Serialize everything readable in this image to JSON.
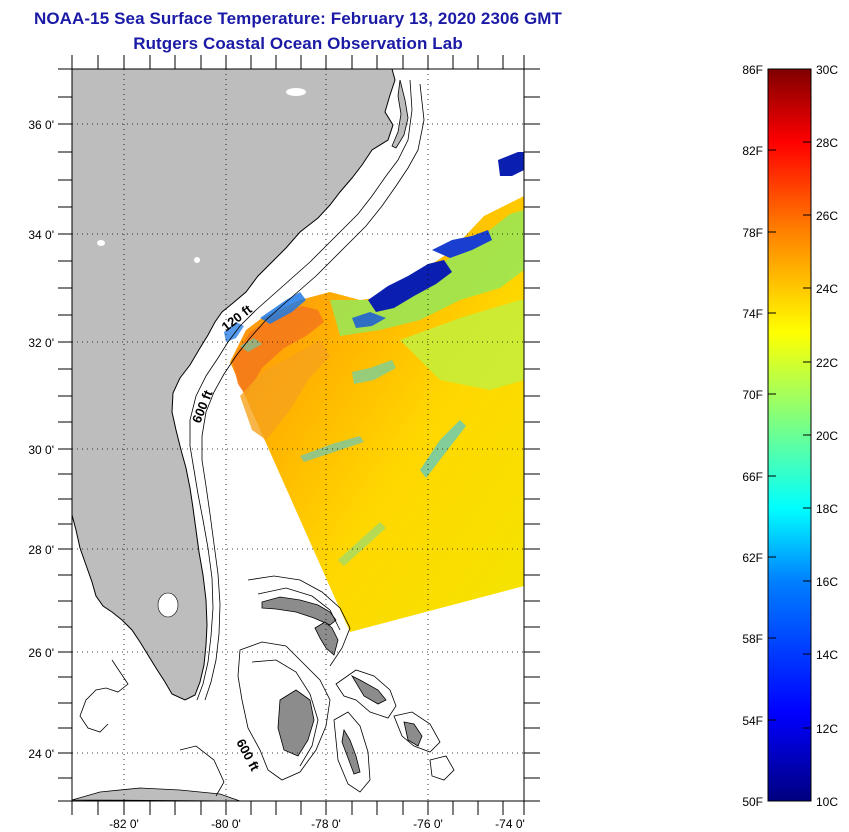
{
  "header": {
    "title": "NOAA-15 Sea Surface Temperature:  February 13, 2020 2306 GMT",
    "subtitle": "Rutgers Coastal Ocean Observation Lab"
  },
  "map": {
    "lat_labels": [
      "36 0'",
      "34 0'",
      "32 0'",
      "30 0'",
      "28 0'",
      "26 0'",
      "24 0'"
    ],
    "lon_labels": [
      "-82 0'",
      "-80 0'",
      "-78 0'",
      "-76 0'",
      "-74 0'"
    ],
    "isobath_labels": [
      "120 ft",
      "600 ft",
      "600 ft"
    ],
    "colors": {
      "land": "#bdbdbd",
      "ocean": "#ffffff",
      "title": "#1a1aa6"
    }
  },
  "colorbar": {
    "f_labels": [
      "86F",
      "82F",
      "78F",
      "74F",
      "70F",
      "66F",
      "62F",
      "58F",
      "54F",
      "50F"
    ],
    "c_labels": [
      "30C",
      "28C",
      "26C",
      "24C",
      "22C",
      "20C",
      "18C",
      "16C",
      "14C",
      "12C",
      "10C"
    ],
    "range_f": [
      50,
      86
    ],
    "range_c": [
      10,
      30
    ],
    "colors": [
      "#00007f",
      "#0000ff",
      "#007fff",
      "#00ffff",
      "#7fff7f",
      "#ffff00",
      "#ff7f00",
      "#ff0000",
      "#7f0000"
    ]
  }
}
